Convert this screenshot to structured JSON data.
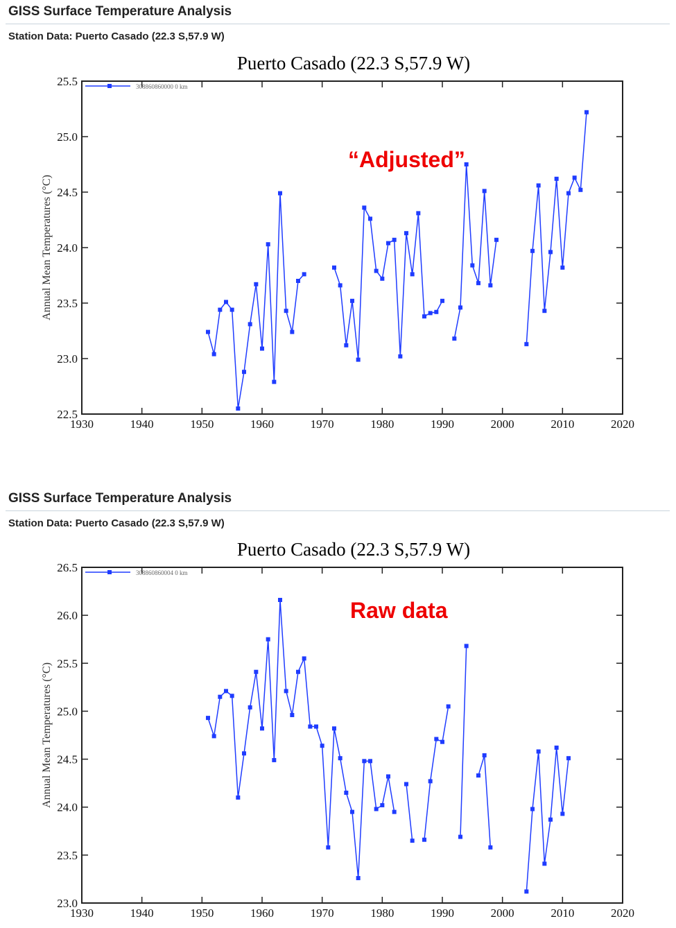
{
  "chart_data": [
    {
      "type": "line",
      "header": "GISS Surface Temperature Analysis",
      "station": "Station Data: Puerto Casado (22.3 S,57.9 W)",
      "title": "Puerto Casado (22.3 S,57.9 W)",
      "annotation": "“Adjusted”",
      "xlabel": "",
      "ylabel": "Annual Mean Temperatures (°C)",
      "xlim": [
        1930,
        2020
      ],
      "ylim": [
        22.5,
        25.5
      ],
      "xticks": [
        1930,
        1940,
        1950,
        1960,
        1970,
        1980,
        1990,
        2000,
        2010,
        2020
      ],
      "yticks": [
        "22.5",
        "23.0",
        "23.5",
        "24.0",
        "24.5",
        "25.0",
        "25.5"
      ],
      "legend": "308860860000 0 km",
      "legend_position": "top-left",
      "color": "#1f3cff",
      "series": [
        {
          "name": "308860860000 0 km",
          "x": [
            1951,
            1952,
            1953,
            1954,
            1955,
            1956,
            1957,
            1958,
            1959,
            1960,
            1961,
            1962,
            1963,
            1964,
            1965,
            1966,
            1967,
            1968,
            1972,
            1973,
            1974,
            1975,
            1976,
            1977,
            1978,
            1979,
            1980,
            1981,
            1982,
            1983,
            1984,
            1985,
            1986,
            1987,
            1988,
            1989,
            1990,
            1991,
            1992,
            1993,
            1994,
            1995,
            1996,
            1997,
            1998,
            1999,
            2000,
            2004,
            2005,
            2006,
            2007,
            2008,
            2009,
            2010,
            2011,
            2012,
            2013,
            2014
          ],
          "y": [
            23.24,
            23.04,
            23.44,
            23.51,
            23.44,
            22.55,
            22.88,
            23.31,
            23.67,
            23.09,
            24.03,
            22.79,
            24.49,
            23.43,
            23.24,
            23.7,
            23.76,
            null,
            23.82,
            23.66,
            23.12,
            23.52,
            22.99,
            24.36,
            24.26,
            23.79,
            23.72,
            24.04,
            24.07,
            23.02,
            24.13,
            23.76,
            24.31,
            23.38,
            23.41,
            23.42,
            23.52,
            null,
            23.18,
            23.46,
            24.75,
            23.84,
            23.68,
            24.51,
            23.66,
            24.07,
            null,
            23.13,
            23.97,
            24.56,
            23.43,
            23.96,
            24.62,
            23.82,
            24.49,
            24.63,
            24.52,
            25.22
          ]
        }
      ]
    },
    {
      "type": "line",
      "header": "GISS Surface Temperature Analysis",
      "station": "Station Data: Puerto Casado (22.3 S,57.9 W)",
      "title": "Puerto Casado (22.3 S,57.9 W)",
      "annotation": "Raw data",
      "xlabel": "",
      "ylabel": "Annual Mean Temperatures (°C)",
      "xlim": [
        1930,
        2020
      ],
      "ylim": [
        23.0,
        26.5
      ],
      "xticks": [
        1930,
        1940,
        1950,
        1960,
        1970,
        1980,
        1990,
        2000,
        2010,
        2020
      ],
      "yticks": [
        "23.0",
        "23.5",
        "24.0",
        "24.5",
        "25.0",
        "25.5",
        "26.0",
        "26.5"
      ],
      "legend": "308860860004 0 km",
      "legend_position": "top-left",
      "color": "#1f3cff",
      "series": [
        {
          "name": "308860860004 0 km",
          "x": [
            1951,
            1952,
            1953,
            1954,
            1955,
            1956,
            1957,
            1958,
            1959,
            1960,
            1961,
            1962,
            1963,
            1964,
            1965,
            1966,
            1967,
            1968,
            1969,
            1970,
            1971,
            1972,
            1973,
            1974,
            1975,
            1976,
            1977,
            1978,
            1979,
            1980,
            1981,
            1982,
            1983,
            1984,
            1985,
            1986,
            1987,
            1988,
            1989,
            1990,
            1991,
            1992,
            1993,
            1994,
            1995,
            1996,
            1997,
            1998,
            1999,
            2004,
            2005,
            2006,
            2007,
            2008,
            2009,
            2010,
            2011
          ],
          "y": [
            24.93,
            24.74,
            25.15,
            25.21,
            25.16,
            24.1,
            24.56,
            25.04,
            25.41,
            24.82,
            25.75,
            24.49,
            26.16,
            25.21,
            24.96,
            25.41,
            25.55,
            24.84,
            24.84,
            24.64,
            23.58,
            24.82,
            24.51,
            24.15,
            23.95,
            23.26,
            24.48,
            24.48,
            23.98,
            24.02,
            24.32,
            23.95,
            null,
            24.24,
            23.65,
            null,
            23.66,
            24.27,
            24.71,
            24.68,
            25.05,
            null,
            23.69,
            25.68,
            null,
            24.33,
            24.54,
            23.58,
            null,
            23.12,
            23.98,
            24.58,
            23.41,
            23.87,
            24.62,
            23.93,
            24.51
          ]
        }
      ]
    }
  ]
}
